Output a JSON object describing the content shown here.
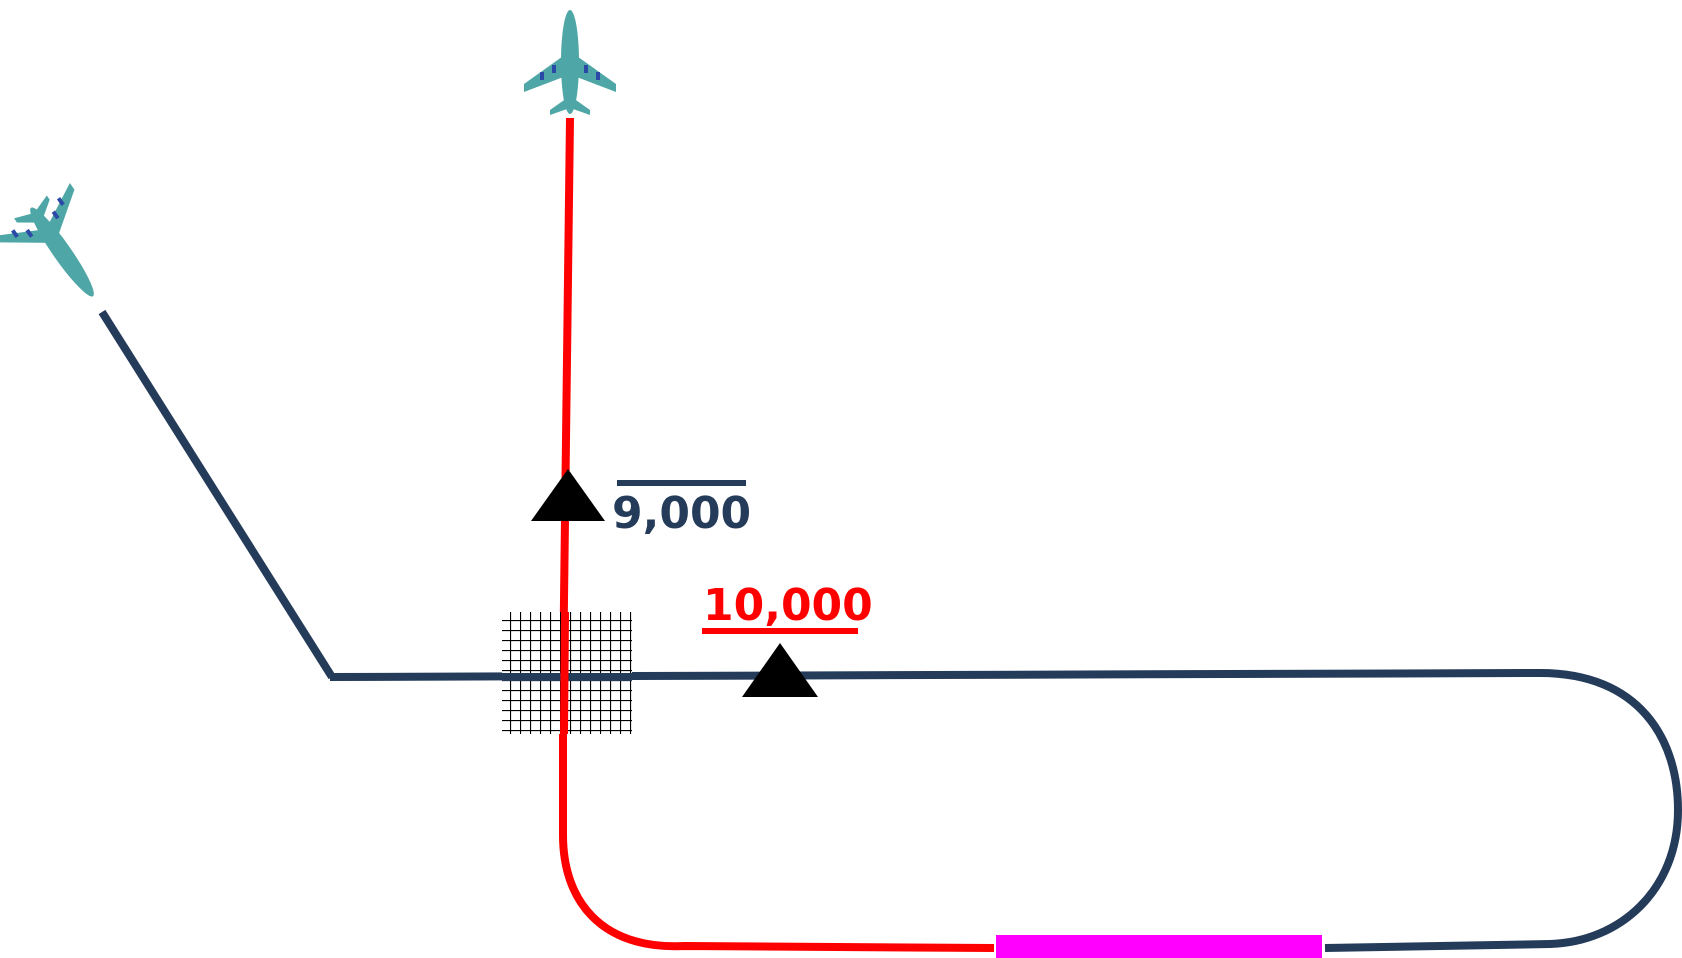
{
  "colors": {
    "navy": "#243b5a",
    "red": "#ff0000",
    "magenta": "#ff00ff",
    "plane": "#4fa6a6",
    "black": "#000000"
  },
  "labels": {
    "altitude_at_or_above": "9,000",
    "altitude_at_or_below": "10,000"
  },
  "icons": [
    "airplane-icon",
    "airplane-icon",
    "triangle-fix-icon",
    "triangle-fix-icon",
    "crosshatch-area-icon"
  ]
}
